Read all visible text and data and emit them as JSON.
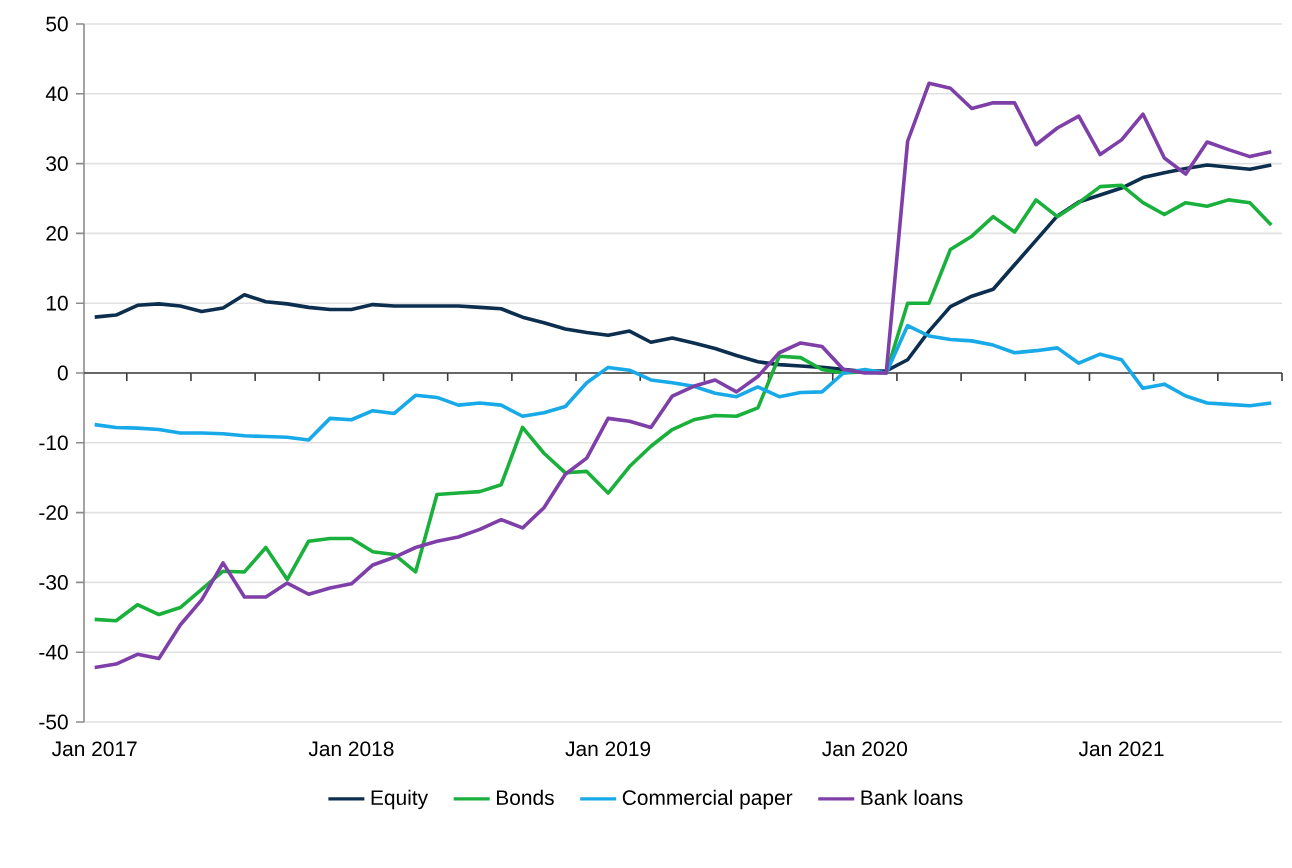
{
  "chart_data": {
    "type": "line",
    "x": [
      "2017-01",
      "2017-02",
      "2017-03",
      "2017-04",
      "2017-05",
      "2017-06",
      "2017-07",
      "2017-08",
      "2017-09",
      "2017-10",
      "2017-11",
      "2017-12",
      "2018-01",
      "2018-02",
      "2018-03",
      "2018-04",
      "2018-05",
      "2018-06",
      "2018-07",
      "2018-08",
      "2018-09",
      "2018-10",
      "2018-11",
      "2018-12",
      "2019-01",
      "2019-02",
      "2019-03",
      "2019-04",
      "2019-05",
      "2019-06",
      "2019-07",
      "2019-08",
      "2019-09",
      "2019-10",
      "2019-11",
      "2019-12",
      "2020-01",
      "2020-02",
      "2020-03",
      "2020-04",
      "2020-05",
      "2020-06",
      "2020-07",
      "2020-08",
      "2020-09",
      "2020-10",
      "2020-11",
      "2020-12",
      "2021-01",
      "2021-02",
      "2021-03",
      "2021-04",
      "2021-05",
      "2021-06",
      "2021-07",
      "2021-08"
    ],
    "series": [
      {
        "name": "Equity",
        "color": "#0d2f4f",
        "values": [
          8.0,
          8.3,
          9.7,
          9.9,
          9.6,
          8.8,
          9.3,
          11.2,
          10.2,
          9.9,
          9.4,
          9.1,
          9.1,
          9.8,
          9.6,
          9.6,
          9.6,
          9.6,
          9.4,
          9.2,
          8.0,
          7.2,
          6.3,
          5.8,
          5.4,
          6.0,
          4.4,
          5.0,
          4.3,
          3.5,
          2.5,
          1.6,
          1.2,
          1.0,
          0.8,
          0.5,
          0.2,
          0.3,
          1.9,
          6.0,
          9.5,
          11.0,
          12.0,
          15.5,
          19.0,
          22.5,
          24.5,
          25.5,
          26.5,
          28.0,
          28.7,
          29.3,
          29.8,
          29.5,
          29.2,
          29.8
        ]
      },
      {
        "name": "Bonds",
        "color": "#1ab03c",
        "values": [
          -35.3,
          -35.5,
          -33.2,
          -34.6,
          -33.6,
          -31.0,
          -28.4,
          -28.5,
          -25.0,
          -29.6,
          -24.1,
          -23.7,
          -23.7,
          -25.6,
          -26.0,
          -28.5,
          -17.4,
          -17.2,
          -17.0,
          -16.0,
          -7.8,
          -11.5,
          -14.3,
          -14.1,
          -17.2,
          -13.4,
          -10.5,
          -8.1,
          -6.7,
          -6.1,
          -6.2,
          -5.0,
          2.4,
          2.2,
          0.5,
          0.0,
          0.2,
          0.0,
          10.0,
          10.0,
          17.7,
          19.6,
          22.4,
          20.2,
          24.8,
          22.4,
          24.4,
          26.7,
          26.9,
          24.4,
          22.7,
          24.4,
          23.9,
          24.8,
          24.4,
          21.2
        ]
      },
      {
        "name": "Commercial paper",
        "color": "#17a9e8",
        "values": [
          -7.4,
          -7.8,
          -7.9,
          -8.1,
          -8.6,
          -8.6,
          -8.7,
          -9.0,
          -9.1,
          -9.2,
          -9.6,
          -6.5,
          -6.7,
          -5.4,
          -5.8,
          -3.2,
          -3.5,
          -4.6,
          -4.3,
          -4.6,
          -6.2,
          -5.7,
          -4.8,
          -1.4,
          0.8,
          0.4,
          -1.0,
          -1.4,
          -1.9,
          -2.9,
          -3.4,
          -2.0,
          -3.4,
          -2.8,
          -2.7,
          0.0,
          0.5,
          0.0,
          6.8,
          5.3,
          4.8,
          4.6,
          4.0,
          2.9,
          3.2,
          3.6,
          1.4,
          2.7,
          1.9,
          -2.2,
          -1.6,
          -3.3,
          -4.3,
          -4.5,
          -4.7,
          -4.3
        ]
      },
      {
        "name": "Bank loans",
        "color": "#7f3fa8",
        "values": [
          -42.2,
          -41.7,
          -40.3,
          -40.9,
          -36.1,
          -32.5,
          -27.2,
          -32.1,
          -32.1,
          -30.1,
          -31.7,
          -30.8,
          -30.2,
          -27.5,
          -26.4,
          -25.0,
          -24.1,
          -23.5,
          -22.4,
          -21.0,
          -22.2,
          -19.3,
          -14.5,
          -12.2,
          -6.5,
          -6.9,
          -7.8,
          -3.3,
          -1.9,
          -1.0,
          -2.7,
          -0.5,
          2.9,
          4.3,
          3.8,
          0.5,
          0.0,
          0.0,
          33.2,
          41.5,
          40.8,
          37.9,
          38.7,
          38.7,
          32.7,
          35.1,
          36.8,
          31.3,
          33.4,
          37.1,
          30.8,
          28.5,
          33.1,
          32.0,
          31.0,
          31.7
        ]
      }
    ],
    "xlim": [
      "2016-12-16",
      "2021-08-16"
    ],
    "xticks": [
      {
        "value": "2017-01",
        "label": "Jan 2017"
      },
      {
        "value": "2017-02-16",
        "label": null
      },
      {
        "value": "2017-05-16",
        "label": null
      },
      {
        "value": "2017-08-16",
        "label": null
      },
      {
        "value": "2017-11-16",
        "label": null
      },
      {
        "value": "2018-01",
        "label": "Jan 2018"
      },
      {
        "value": "2018-02-16",
        "label": null
      },
      {
        "value": "2018-05-16",
        "label": null
      },
      {
        "value": "2018-08-16",
        "label": null
      },
      {
        "value": "2018-11-16",
        "label": null
      },
      {
        "value": "2019-01",
        "label": "Jan 2019"
      },
      {
        "value": "2019-02-16",
        "label": null
      },
      {
        "value": "2019-05-16",
        "label": null
      },
      {
        "value": "2019-08-16",
        "label": null
      },
      {
        "value": "2019-11-16",
        "label": null
      },
      {
        "value": "2020-01",
        "label": "Jan 2020"
      },
      {
        "value": "2020-02-16",
        "label": null
      },
      {
        "value": "2020-05-16",
        "label": null
      },
      {
        "value": "2020-08-16",
        "label": null
      },
      {
        "value": "2020-11-16",
        "label": null
      },
      {
        "value": "2021-01",
        "label": "Jan 2021"
      },
      {
        "value": "2021-02-16",
        "label": null
      },
      {
        "value": "2021-05-16",
        "label": null
      },
      {
        "value": "2021-08-16",
        "label": null
      }
    ],
    "ylim": [
      -50,
      50
    ],
    "yticks": [
      -50,
      -40,
      -30,
      -20,
      -10,
      0,
      10,
      20,
      30,
      40,
      50
    ],
    "grid": "y",
    "legend": "bottom",
    "marker": "none",
    "line_style": "solid"
  }
}
